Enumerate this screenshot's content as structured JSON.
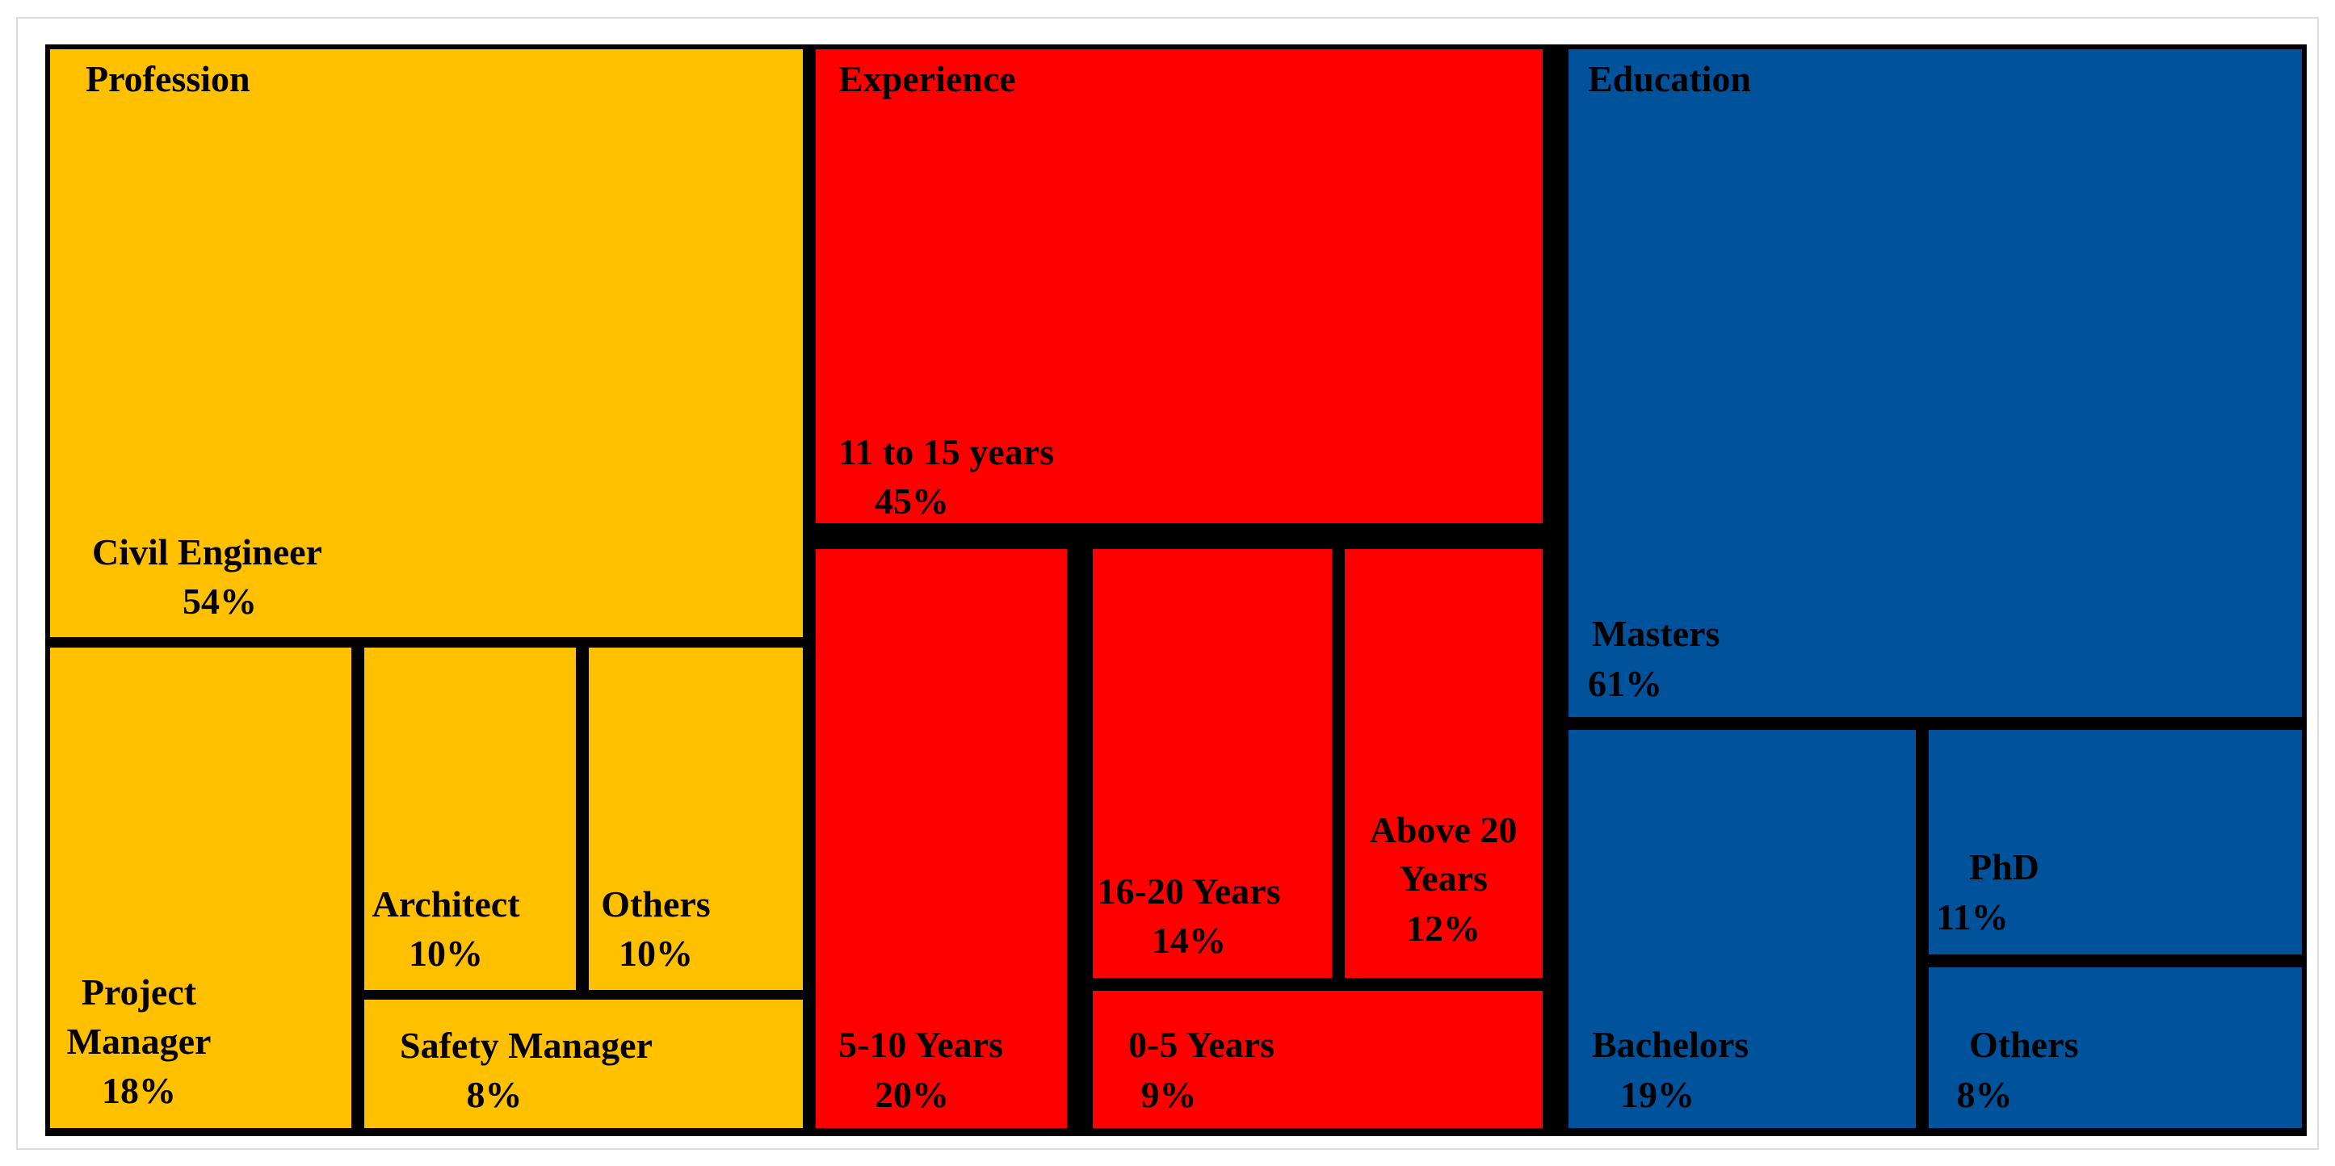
{
  "chart_data": {
    "type": "treemap",
    "groups": [
      {
        "name": "Profession",
        "color": "#FFC000",
        "items": [
          {
            "label": "Civil Engineer",
            "value": "54%"
          },
          {
            "label": "Project Manager",
            "value": "18%"
          },
          {
            "label": "Architect",
            "value": "10%"
          },
          {
            "label": "Others",
            "value": "10%"
          },
          {
            "label": "Safety Manager",
            "value": "8%"
          }
        ]
      },
      {
        "name": "Experience",
        "color": "#FF0000",
        "items": [
          {
            "label": "11 to 15 years",
            "value": "45%"
          },
          {
            "label": "5-10 Years",
            "value": "20%"
          },
          {
            "label": "16-20 Years",
            "value": "14%"
          },
          {
            "label": "Above 20 Years",
            "value": "12%"
          },
          {
            "label": "0-5 Years",
            "value": "9%"
          }
        ]
      },
      {
        "name": "Education",
        "color": "#00529B",
        "items": [
          {
            "label": "Masters",
            "value": "61%"
          },
          {
            "label": "Bachelors",
            "value": "19%"
          },
          {
            "label": "PhD",
            "value": "11%"
          },
          {
            "label": "Others",
            "value": "8%"
          }
        ]
      }
    ],
    "border_color": "#000000"
  }
}
